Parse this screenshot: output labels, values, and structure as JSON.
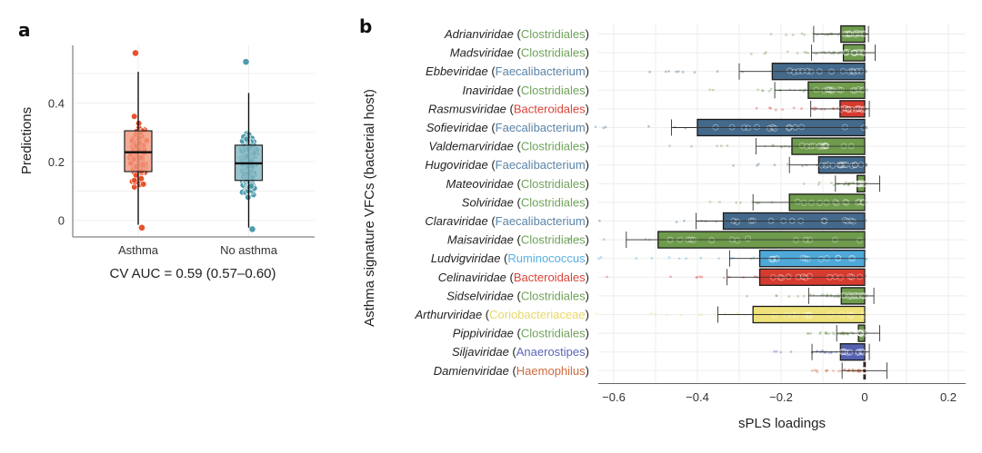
{
  "chart_data": [
    {
      "panel": "a",
      "type": "box",
      "title": "",
      "xlabel": "",
      "ylabel": "Predictions",
      "ylim": [
        -0.05,
        0.57
      ],
      "yticks": [
        "0",
        "0.2",
        "0.4"
      ],
      "ytick_values": [
        0,
        0.2,
        0.4
      ],
      "grid": true,
      "categories": [
        "Asthma",
        "No asthma"
      ],
      "colors": {
        "Asthma": "#e8522b",
        "No asthma": "#4f9bad"
      },
      "box_fill": {
        "Asthma": "#f0957a",
        "No asthma": "#7fb5c1"
      },
      "boxes": [
        {
          "name": "Asthma",
          "whisker_low": -0.015,
          "q1": 0.166,
          "median": 0.232,
          "q3": 0.305,
          "whisker_high": 0.506,
          "outlier_max": 0.57,
          "outlier_min": -0.025
        },
        {
          "name": "No asthma",
          "whisker_low": -0.025,
          "q1": 0.136,
          "median": 0.194,
          "q3": 0.256,
          "whisker_high": 0.434,
          "outlier_max": 0.54,
          "outlier_min": -0.03
        }
      ],
      "annotation": "CV AUC = 0.59 (0.57–0.60)"
    },
    {
      "panel": "b",
      "type": "bar",
      "orientation": "horizontal",
      "title": "",
      "xlabel": "sPLS loadings",
      "ylabel": "Asthma signature VFCs (bacterial host)",
      "xlim": [
        -0.64,
        0.22
      ],
      "xticks": [
        "−0.6",
        "−0.4",
        "−0.2",
        "0",
        "0.2"
      ],
      "xtick_values": [
        -0.6,
        -0.4,
        -0.2,
        0,
        0.2
      ],
      "grid": true,
      "host_colors": {
        "Clostridiales": "#6e9b4c",
        "Faecalibacterium": "#44698a",
        "Bacteroidales": "#d63b2f",
        "Ruminococcus": "#4ea9d9",
        "Coriobacteriaceae": "#efe27a",
        "Anaerostipes": "#5560b0",
        "Haemophilus": "#d4663c"
      },
      "label_colors": {
        "Clostridiales": "#6fa35a",
        "Faecalibacterium": "#5a84a8",
        "Bacteroidales": "#d9443a",
        "Ruminococcus": "#58b1e0",
        "Coriobacteriaceae": "#e9d868",
        "Anaerostipes": "#5a66b8",
        "Haemophilus": "#d06a3c"
      },
      "rows": [
        {
          "vfc": "Adrianviridae",
          "host": "Clostridiales",
          "value": -0.057,
          "err_low": -0.122,
          "err_high": 0.009
        },
        {
          "vfc": "Madsviridae",
          "host": "Clostridiales",
          "value": -0.051,
          "err_low": -0.127,
          "err_high": 0.025
        },
        {
          "vfc": "Ebbeviridae",
          "host": "Faecalibacterium",
          "value": -0.221,
          "err_low": -0.3,
          "err_high": 0.0
        },
        {
          "vfc": "Inaviridae",
          "host": "Clostridiales",
          "value": -0.135,
          "err_low": -0.215,
          "err_high": 0.0
        },
        {
          "vfc": "Rasmusviridae",
          "host": "Bacteroidales",
          "value": -0.059,
          "err_low": -0.129,
          "err_high": 0.011
        },
        {
          "vfc": "Sofieviridae",
          "host": "Faecalibacterium",
          "value": -0.4,
          "err_low": -0.462,
          "err_high": 0.0
        },
        {
          "vfc": "Valdemarviridae",
          "host": "Clostridiales",
          "value": -0.174,
          "err_low": -0.26,
          "err_high": 0.0
        },
        {
          "vfc": "Hugoviridae",
          "host": "Faecalibacterium",
          "value": -0.11,
          "err_low": -0.18,
          "err_high": 0.0
        },
        {
          "vfc": "Mateoviridae",
          "host": "Clostridiales",
          "value": -0.018,
          "err_low": -0.07,
          "err_high": 0.036
        },
        {
          "vfc": "Solviridae",
          "host": "Clostridiales",
          "value": -0.18,
          "err_low": -0.267,
          "err_high": 0.0
        },
        {
          "vfc": "Claraviridae",
          "host": "Faecalibacterium",
          "value": -0.338,
          "err_low": -0.403,
          "err_high": 0.0
        },
        {
          "vfc": "Maisaviridae",
          "host": "Clostridiales",
          "value": -0.494,
          "err_low": -0.57,
          "err_high": 0.0
        },
        {
          "vfc": "Ludvigviridae",
          "host": "Ruminococcus",
          "value": -0.251,
          "err_low": -0.323,
          "err_high": 0.0
        },
        {
          "vfc": "Celinaviridae",
          "host": "Bacteroidales",
          "value": -0.251,
          "err_low": -0.329,
          "err_high": 0.0
        },
        {
          "vfc": "Sidselviridae",
          "host": "Clostridiales",
          "value": -0.056,
          "err_low": -0.134,
          "err_high": 0.022
        },
        {
          "vfc": "Arthurviridae",
          "host": "Coriobacteriaceae",
          "value": -0.267,
          "err_low": -0.351,
          "err_high": 0.0
        },
        {
          "vfc": "Pippiviridae",
          "host": "Clostridiales",
          "value": -0.015,
          "err_low": -0.067,
          "err_high": 0.036
        },
        {
          "vfc": "Siljaviridae",
          "host": "Anaerostipes",
          "value": -0.058,
          "err_low": -0.126,
          "err_high": 0.011
        },
        {
          "vfc": "Damienviridae",
          "host": "Haemophilus",
          "value": -0.002,
          "err_low": -0.054,
          "err_high": 0.053
        }
      ]
    }
  ],
  "panels": {
    "a_letter": "a",
    "b_letter": "b"
  }
}
